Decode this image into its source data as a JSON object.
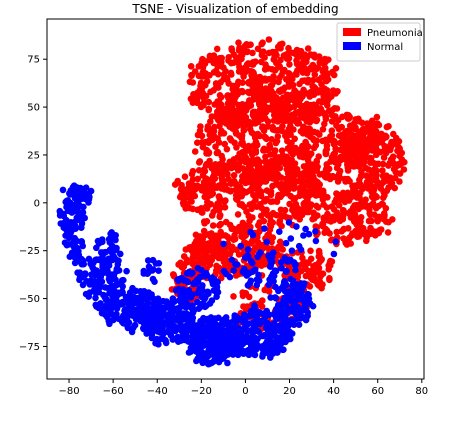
{
  "chart_data": {
    "type": "scatter",
    "title": "TSNE -  Visualization of embedding",
    "xlabel": "",
    "ylabel": "",
    "xlim": [
      -90,
      81
    ],
    "ylim": [
      -92,
      96
    ],
    "xticks": [
      -80,
      -60,
      -40,
      -20,
      0,
      20,
      40,
      60,
      80
    ],
    "yticks": [
      -75,
      -50,
      -25,
      0,
      25,
      50,
      75
    ],
    "xtick_labels": [
      "−80",
      "−60",
      "−40",
      "−20",
      "0",
      "20",
      "40",
      "60",
      "80"
    ],
    "ytick_labels": [
      "−75",
      "−50",
      "−25",
      "0",
      "25",
      "50",
      "75"
    ],
    "grid": false,
    "legend_position": "top-right",
    "series": [
      {
        "name": "Pneumonia",
        "color": "#ff0000",
        "regions": [
          {
            "cx": 8,
            "cy": 62,
            "rx": 34,
            "ry": 22,
            "n": 520
          },
          {
            "cx": 18,
            "cy": 30,
            "rx": 42,
            "ry": 22,
            "n": 520
          },
          {
            "cx": 58,
            "cy": 22,
            "rx": 14,
            "ry": 20,
            "n": 220
          },
          {
            "cx": 2,
            "cy": 5,
            "rx": 34,
            "ry": 18,
            "n": 400
          },
          {
            "cx": 48,
            "cy": -8,
            "rx": 18,
            "ry": 14,
            "n": 180
          },
          {
            "cx": -5,
            "cy": -25,
            "rx": 22,
            "ry": 12,
            "n": 260
          },
          {
            "cx": 28,
            "cy": -35,
            "rx": 12,
            "ry": 10,
            "n": 90
          },
          {
            "cx": -26,
            "cy": -40,
            "rx": 8,
            "ry": 12,
            "n": 70
          },
          {
            "cx": 8,
            "cy": -55,
            "rx": 18,
            "ry": 12,
            "n": 70
          }
        ]
      },
      {
        "name": "Normal",
        "color": "#0000ff",
        "regions": [
          {
            "cx": -78,
            "cy": -12,
            "rx": 5,
            "ry": 22,
            "n": 110
          },
          {
            "cx": -72,
            "cy": 5,
            "rx": 2,
            "ry": 5,
            "n": 20
          },
          {
            "cx": -66,
            "cy": -38,
            "rx": 10,
            "ry": 12,
            "n": 90
          },
          {
            "cx": -52,
            "cy": -55,
            "rx": 14,
            "ry": 10,
            "n": 150
          },
          {
            "cx": -35,
            "cy": -62,
            "rx": 12,
            "ry": 12,
            "n": 170
          },
          {
            "cx": -15,
            "cy": -72,
            "rx": 12,
            "ry": 12,
            "n": 220
          },
          {
            "cx": 5,
            "cy": -68,
            "rx": 16,
            "ry": 12,
            "n": 250
          },
          {
            "cx": 22,
            "cy": -52,
            "rx": 8,
            "ry": 12,
            "n": 100
          },
          {
            "cx": -22,
            "cy": -45,
            "rx": 10,
            "ry": 10,
            "n": 80
          },
          {
            "cx": -62,
            "cy": -24,
            "rx": 4,
            "ry": 8,
            "n": 30
          },
          {
            "cx": 8,
            "cy": -35,
            "rx": 18,
            "ry": 10,
            "n": 60
          },
          {
            "cx": -42,
            "cy": -35,
            "rx": 5,
            "ry": 5,
            "n": 15
          },
          {
            "cx": 15,
            "cy": -22,
            "rx": 30,
            "ry": 10,
            "n": 25
          }
        ]
      }
    ]
  }
}
